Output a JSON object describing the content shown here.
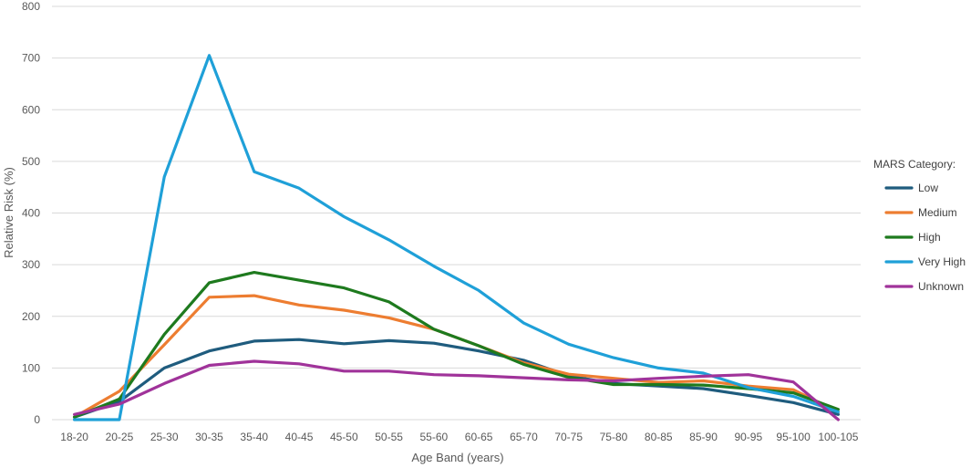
{
  "chart_data": {
    "type": "line",
    "title": "",
    "xlabel": "Age Band (years)",
    "ylabel": "Relative Risk (%)",
    "ylim": [
      0,
      800
    ],
    "yticks": [
      0,
      100,
      200,
      300,
      400,
      500,
      600,
      700,
      800
    ],
    "grid": true,
    "legend_title": "MARS Category:",
    "legend_position": "right",
    "categories": [
      "18-20",
      "20-25",
      "25-30",
      "30-35",
      "35-40",
      "40-45",
      "45-50",
      "50-55",
      "55-60",
      "60-65",
      "65-70",
      "70-75",
      "75-80",
      "80-85",
      "85-90",
      "90-95",
      "95-100",
      "100-105"
    ],
    "series": [
      {
        "name": "Low",
        "color": "#1f5c7e",
        "values": [
          5,
          35,
          100,
          133,
          152,
          155,
          147,
          153,
          148,
          133,
          115,
          85,
          70,
          65,
          60,
          47,
          33,
          10
        ]
      },
      {
        "name": "Medium",
        "color": "#ed7d31",
        "values": [
          5,
          55,
          145,
          237,
          240,
          222,
          212,
          197,
          175,
          143,
          110,
          88,
          80,
          72,
          75,
          65,
          58,
          15
        ]
      },
      {
        "name": "High",
        "color": "#1e7a1e",
        "values": [
          5,
          40,
          165,
          265,
          285,
          270,
          255,
          228,
          175,
          143,
          107,
          82,
          68,
          68,
          67,
          60,
          52,
          20
        ]
      },
      {
        "name": "Very High",
        "color": "#1fa0d8",
        "values": [
          0,
          0,
          470,
          705,
          480,
          448,
          393,
          348,
          297,
          250,
          187,
          146,
          120,
          100,
          90,
          62,
          45,
          15
        ]
      },
      {
        "name": "Unknown",
        "color": "#a0339a",
        "values": [
          10,
          30,
          70,
          105,
          113,
          108,
          94,
          94,
          87,
          85,
          81,
          77,
          75,
          80,
          84,
          87,
          73,
          0
        ]
      }
    ]
  }
}
